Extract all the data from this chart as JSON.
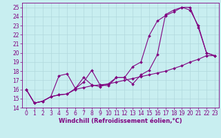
{
  "title": "",
  "xlabel": "Windchill (Refroidissement éolien,°C)",
  "ylabel": "",
  "bg_color": "#c8eef0",
  "line_color": "#800080",
  "grid_color": "#b0d8dc",
  "xlim": [
    -0.5,
    23.5
  ],
  "ylim": [
    14,
    25.5
  ],
  "xticks": [
    0,
    1,
    2,
    3,
    4,
    5,
    6,
    7,
    8,
    9,
    10,
    11,
    12,
    13,
    14,
    15,
    16,
    17,
    18,
    19,
    20,
    21,
    22,
    23
  ],
  "yticks": [
    14,
    15,
    16,
    17,
    18,
    19,
    20,
    21,
    22,
    23,
    24,
    25
  ],
  "line1_x": [
    0,
    1,
    2,
    3,
    4,
    5,
    6,
    7,
    8,
    9,
    10,
    11,
    12,
    13,
    14,
    15,
    16,
    17,
    18,
    19,
    20,
    21,
    22,
    23
  ],
  "line1_y": [
    16.0,
    14.5,
    14.7,
    15.2,
    17.5,
    17.7,
    16.1,
    16.8,
    18.1,
    16.5,
    16.4,
    17.3,
    17.3,
    18.5,
    19.0,
    21.9,
    23.5,
    24.1,
    24.5,
    25.0,
    25.0,
    22.8,
    20.0,
    19.7
  ],
  "line2_x": [
    0,
    1,
    2,
    3,
    4,
    5,
    6,
    7,
    8,
    9,
    10,
    11,
    12,
    13,
    14,
    15,
    16,
    17,
    18,
    19,
    20,
    21,
    22,
    23
  ],
  "line2_y": [
    16.0,
    14.5,
    14.7,
    15.2,
    15.4,
    15.5,
    16.1,
    17.3,
    16.5,
    16.3,
    16.6,
    17.3,
    17.3,
    16.6,
    17.6,
    18.1,
    19.8,
    24.2,
    24.7,
    25.0,
    24.7,
    23.0,
    20.0,
    19.7
  ],
  "line3_x": [
    0,
    1,
    2,
    3,
    4,
    5,
    6,
    7,
    8,
    9,
    10,
    11,
    12,
    13,
    14,
    15,
    16,
    17,
    18,
    19,
    20,
    21,
    22,
    23
  ],
  "line3_y": [
    16.0,
    14.5,
    14.7,
    15.2,
    15.4,
    15.5,
    16.0,
    16.2,
    16.4,
    16.5,
    16.6,
    16.8,
    17.0,
    17.2,
    17.4,
    17.6,
    17.8,
    18.0,
    18.3,
    18.6,
    19.0,
    19.3,
    19.7,
    19.7
  ],
  "tick_fontsize": 5.5,
  "xlabel_fontsize": 6.0,
  "marker_size": 2.0,
  "line_width": 0.8
}
